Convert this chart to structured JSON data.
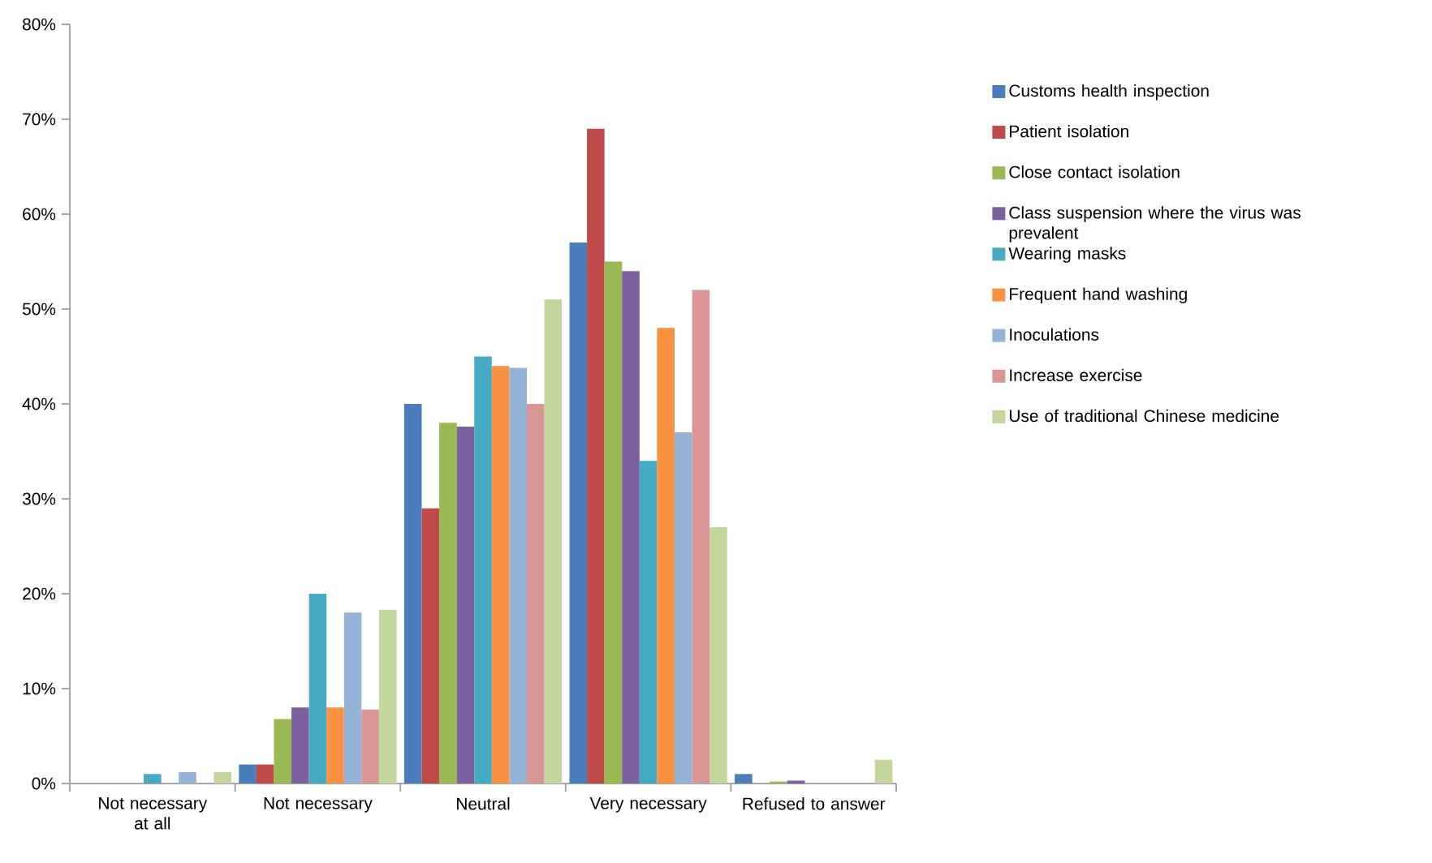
{
  "chart_data": {
    "type": "bar",
    "categories": [
      "Not necessary at all",
      "Not necessary",
      "Neutral",
      "Very necessary",
      "Refused to answer"
    ],
    "ylim": [
      0,
      80
    ],
    "yticks": [
      {
        "value": 0,
        "label": "0%"
      },
      {
        "value": 10,
        "label": "10%"
      },
      {
        "value": 20,
        "label": "20%"
      },
      {
        "value": 30,
        "label": "30%"
      },
      {
        "value": 40,
        "label": "40%"
      },
      {
        "value": 50,
        "label": "50%"
      },
      {
        "value": 60,
        "label": "60%"
      },
      {
        "value": 70,
        "label": "70%"
      },
      {
        "value": 80,
        "label": "80%"
      }
    ],
    "legend": "right",
    "series": [
      {
        "name": "Customs health inspection",
        "color": "#4a7ebb",
        "values": [
          null,
          2,
          40,
          57,
          1
        ]
      },
      {
        "name": "Patient isolation",
        "color": "#be4b48",
        "values": [
          null,
          2,
          29,
          69,
          null
        ]
      },
      {
        "name": "Close contact isolation",
        "color": "#98b954",
        "values": [
          null,
          6.8,
          38,
          55,
          0.2
        ]
      },
      {
        "name": "Class suspension where the virus was prevalent",
        "color": "#7d60a0",
        "values": [
          null,
          8,
          37.6,
          54,
          0.3
        ]
      },
      {
        "name": "Wearing masks",
        "color": "#46aac5",
        "values": [
          1,
          20,
          45,
          34,
          null
        ]
      },
      {
        "name": "Frequent hand washing",
        "color": "#f69240",
        "values": [
          null,
          8,
          44,
          48,
          null
        ]
      },
      {
        "name": "Inoculations",
        "color": "#95b3d7",
        "values": [
          1.2,
          18,
          43.8,
          37,
          null
        ]
      },
      {
        "name": "Increase exercise",
        "color": "#d99694",
        "values": [
          null,
          7.8,
          40,
          52,
          null
        ]
      },
      {
        "name": "Use of traditional Chinese medicine",
        "color": "#c3d69b",
        "values": [
          1.2,
          18.3,
          51,
          27,
          2.5
        ]
      }
    ]
  }
}
